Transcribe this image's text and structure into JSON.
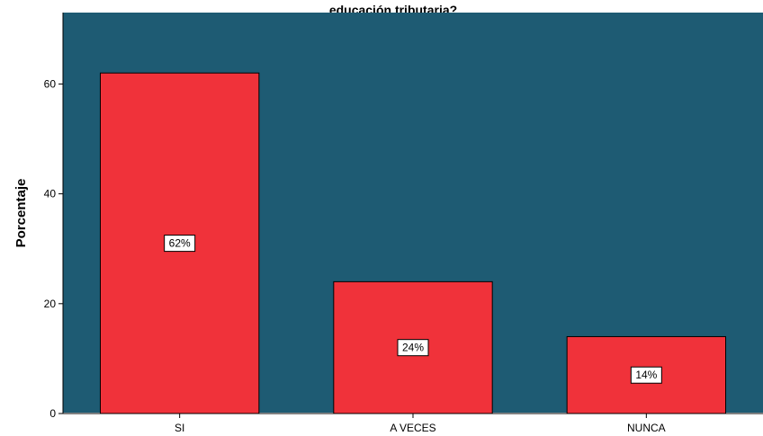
{
  "chart_data": {
    "type": "bar",
    "title": "educación tributaria?",
    "ylabel": "Porcentaje",
    "xlabel": "",
    "categories": [
      "SI",
      "A VECES",
      "NUNCA"
    ],
    "values": [
      62,
      24,
      14
    ],
    "data_labels": [
      "62%",
      "24%",
      "14%"
    ],
    "ylim": [
      0,
      73
    ],
    "yticks": [
      0,
      20,
      40,
      60
    ],
    "grid": false,
    "legend": "none",
    "colors": {
      "plot_background": "#1e5b73",
      "bar_fill": "#f0323a",
      "bar_stroke": "#000000",
      "label_background": "#ffffff"
    }
  }
}
